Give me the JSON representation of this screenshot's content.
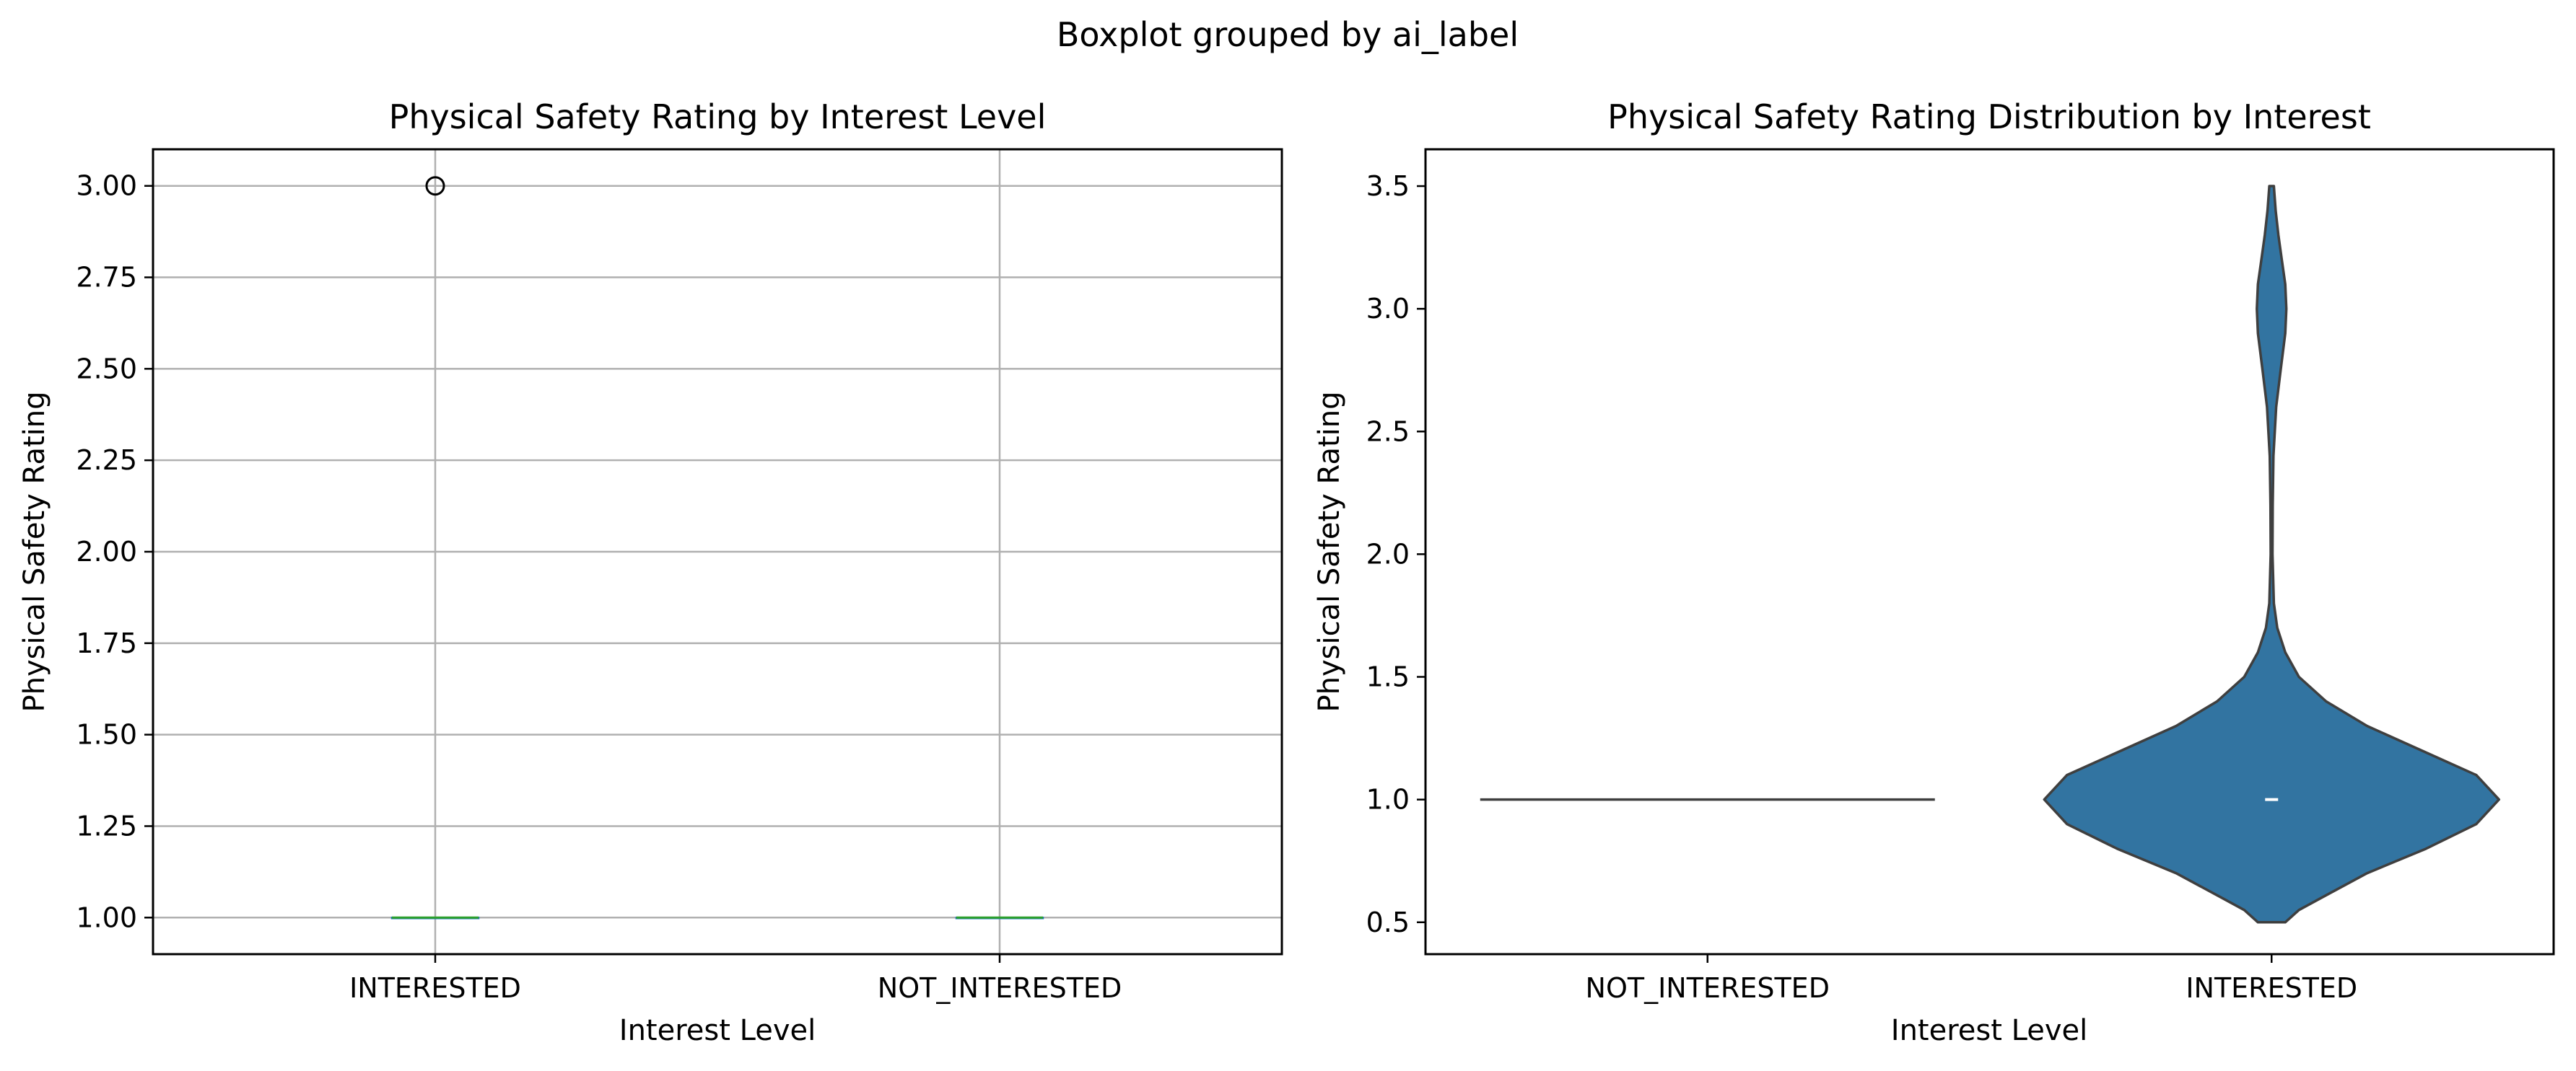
{
  "figure": {
    "suptitle": "Boxplot grouped by ai_label"
  },
  "chart_data": [
    {
      "type": "box",
      "title": "Physical Safety Rating by Interest Level",
      "xlabel": "Interest Level",
      "ylabel": "Physical Safety Rating",
      "grid": true,
      "categories": [
        "INTERESTED",
        "NOT_INTERESTED"
      ],
      "ylim": [
        0.9,
        3.1
      ],
      "yticks": [
        1.0,
        1.25,
        1.5,
        1.75,
        2.0,
        2.25,
        2.5,
        2.75,
        3.0
      ],
      "ytick_labels": [
        "1.00",
        "1.25",
        "1.50",
        "1.75",
        "2.00",
        "2.25",
        "2.50",
        "2.75",
        "3.00"
      ],
      "boxes": [
        {
          "category": "INTERESTED",
          "q1": 1.0,
          "median": 1.0,
          "q3": 1.0,
          "whisker_low": 1.0,
          "whisker_high": 1.0,
          "outliers": [
            3.0
          ]
        },
        {
          "category": "NOT_INTERESTED",
          "q1": 1.0,
          "median": 1.0,
          "q3": 1.0,
          "whisker_low": 1.0,
          "whisker_high": 1.0,
          "outliers": []
        }
      ],
      "colors": {
        "box": "#1f77b4",
        "median": "#2ca02c",
        "grid": "#b0b0b0"
      }
    },
    {
      "type": "violin",
      "title": "Physical Safety Rating Distribution by Interest",
      "xlabel": "Interest Level",
      "ylabel": "Physical Safety Rating",
      "grid": false,
      "categories": [
        "NOT_INTERESTED",
        "INTERESTED"
      ],
      "ylim": [
        0.37,
        3.65
      ],
      "yticks": [
        0.5,
        1.0,
        1.5,
        2.0,
        2.5,
        3.0,
        3.5
      ],
      "ytick_labels": [
        "0.5",
        "1.0",
        "1.5",
        "2.0",
        "2.5",
        "3.0",
        "3.5"
      ],
      "violins": [
        {
          "category": "NOT_INTERESTED",
          "min": 1.0,
          "max": 1.0,
          "median": 1.0,
          "density": []
        },
        {
          "category": "INTERESTED",
          "min": 0.5,
          "max": 3.5,
          "median": 1.0,
          "density": [
            [
              0.5,
              0.06
            ],
            [
              0.55,
              0.12
            ],
            [
              0.6,
              0.22
            ],
            [
              0.7,
              0.42
            ],
            [
              0.8,
              0.68
            ],
            [
              0.9,
              0.9
            ],
            [
              1.0,
              1.0
            ],
            [
              1.1,
              0.9
            ],
            [
              1.2,
              0.66
            ],
            [
              1.3,
              0.42
            ],
            [
              1.4,
              0.24
            ],
            [
              1.5,
              0.12
            ],
            [
              1.6,
              0.06
            ],
            [
              1.7,
              0.025
            ],
            [
              1.8,
              0.01
            ],
            [
              2.0,
              0.004
            ],
            [
              2.2,
              0.005
            ],
            [
              2.4,
              0.008
            ],
            [
              2.6,
              0.02
            ],
            [
              2.75,
              0.04
            ],
            [
              2.9,
              0.06
            ],
            [
              3.0,
              0.065
            ],
            [
              3.1,
              0.06
            ],
            [
              3.2,
              0.045
            ],
            [
              3.3,
              0.03
            ],
            [
              3.4,
              0.018
            ],
            [
              3.5,
              0.01
            ]
          ]
        }
      ],
      "colors": {
        "fill": "#3274a1",
        "edge": "#3f3f3f"
      }
    }
  ]
}
